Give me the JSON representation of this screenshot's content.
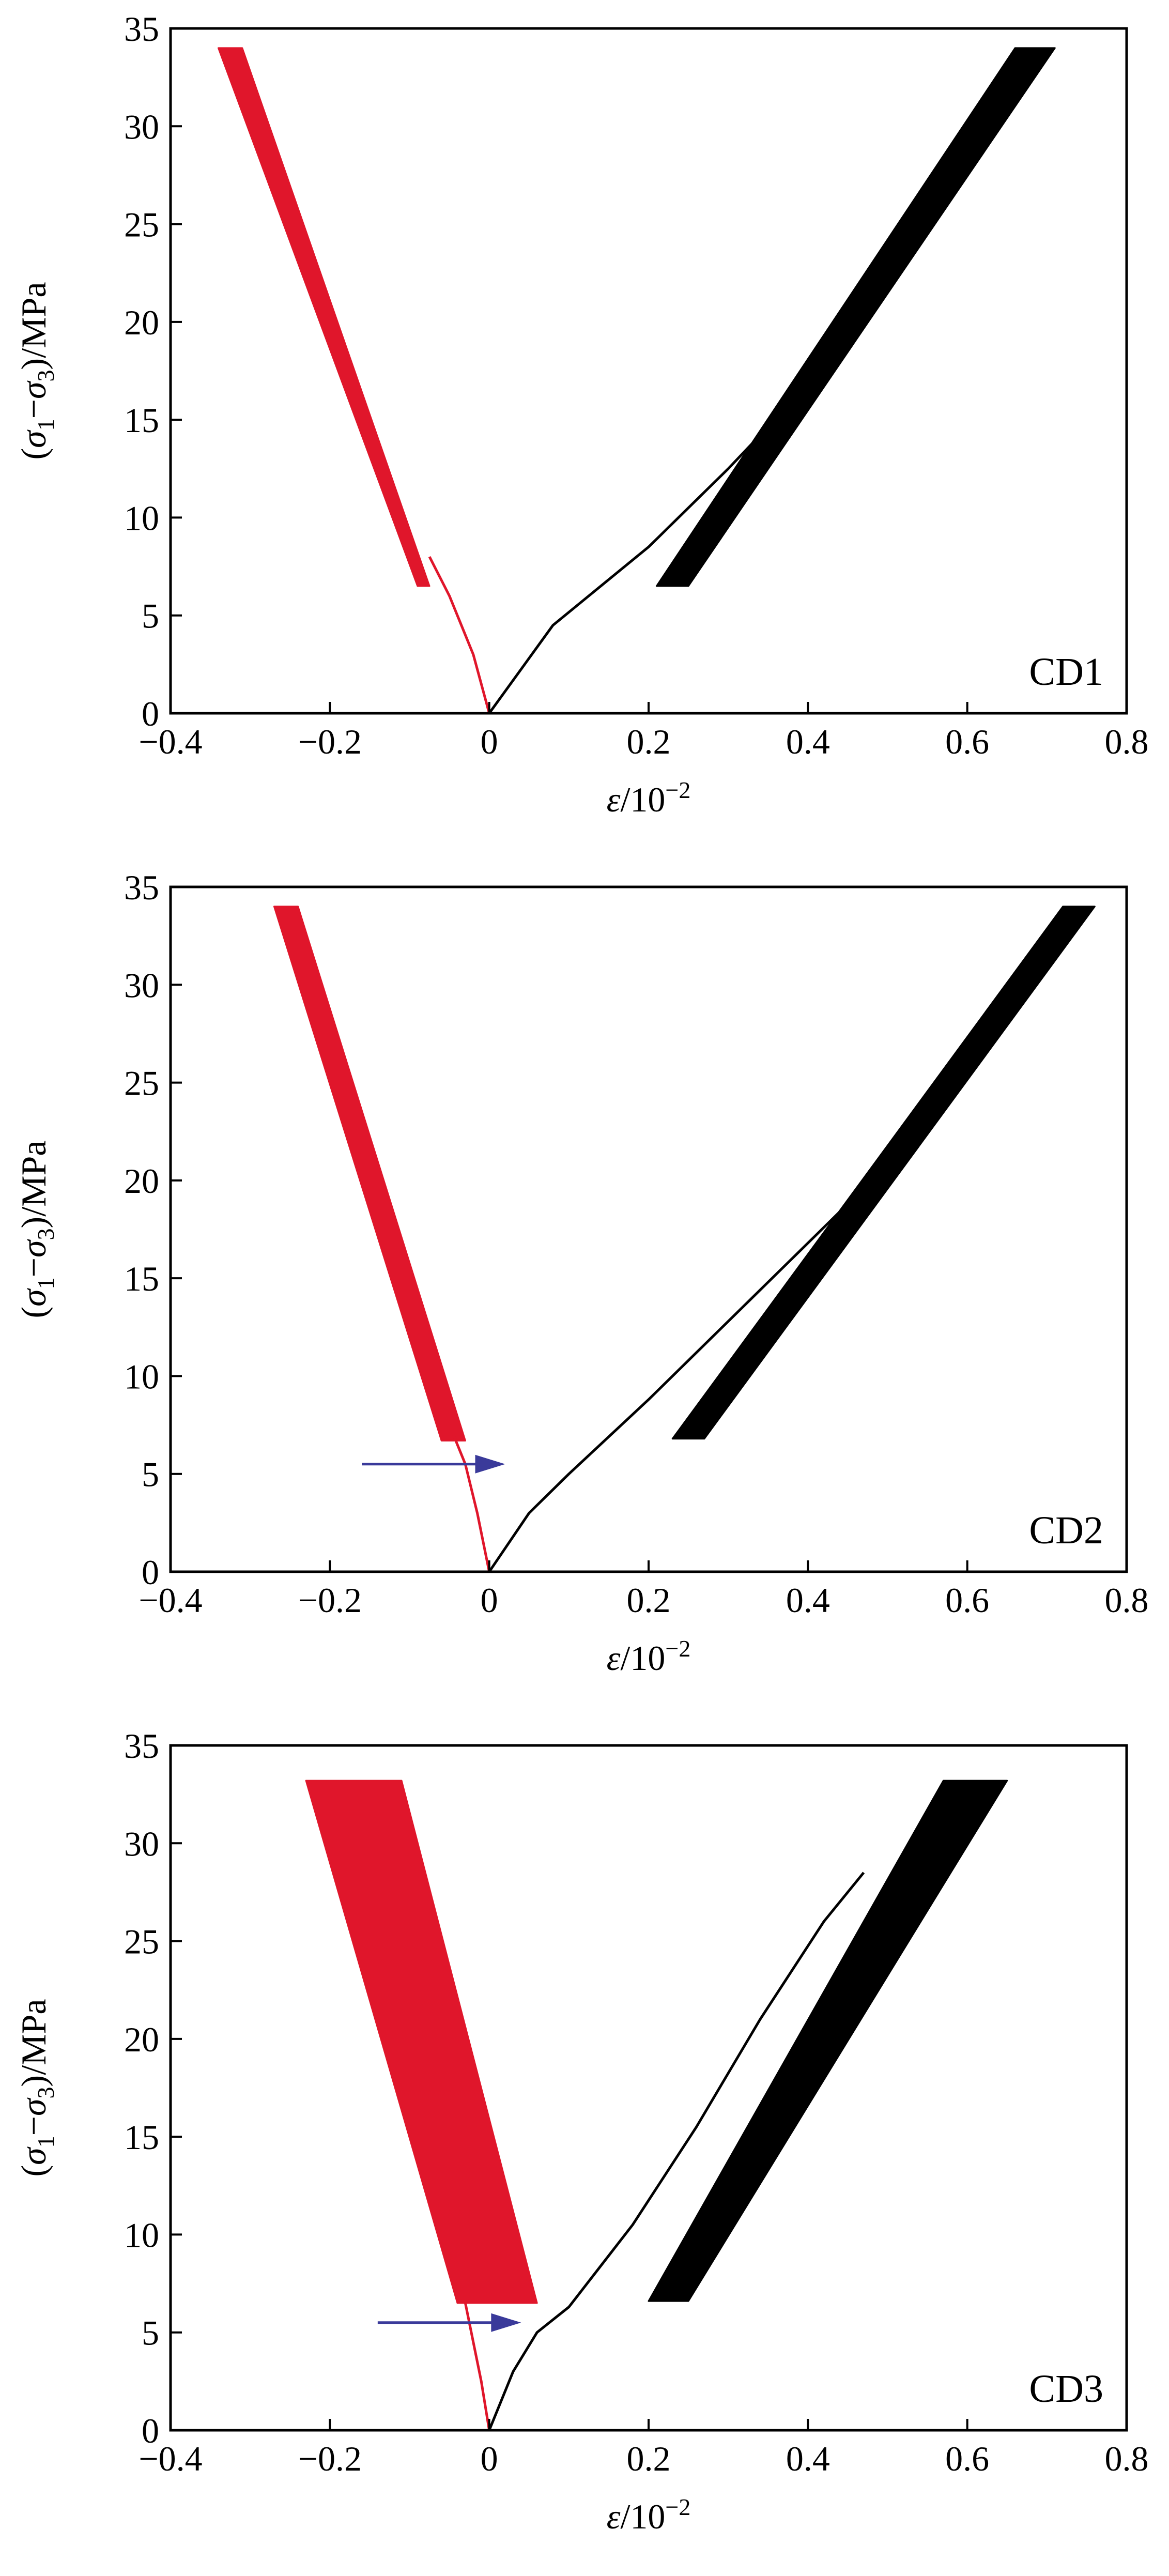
{
  "colors": {
    "lateral": "#e0162b",
    "axial": "#000000",
    "arrow": "#3a3a9a"
  },
  "axes": {
    "x_label_symbol": "ε",
    "x_label_rest": "/10",
    "x_label_exp": "−2",
    "y_label_parts": [
      "(",
      "σ",
      "1",
      "−",
      "σ",
      "3",
      ")/MPa"
    ],
    "x_ticks": [
      "−0.4",
      "−0.2",
      "0",
      "0.2",
      "0.4",
      "0.6",
      "0.8"
    ],
    "y_ticks": [
      "0",
      "5",
      "10",
      "15",
      "20",
      "25",
      "30",
      "35"
    ]
  },
  "chart_data": [
    {
      "type": "line",
      "panel_label": "CD1",
      "xlim": [
        -0.4,
        0.8
      ],
      "ylim": [
        0,
        35
      ],
      "grid": false,
      "series": [
        {
          "role": "lateral",
          "initial_loading": {
            "x": [
              0,
              -0.02,
              -0.05,
              -0.075
            ],
            "y": [
              0,
              3,
              6,
              8
            ]
          },
          "cycle_band": {
            "lower": {
              "y": 6.5,
              "x_left": -0.09,
              "x_right": -0.075
            },
            "upper": {
              "y": 34,
              "x_left": -0.34,
              "x_right": -0.31
            }
          }
        },
        {
          "role": "axial",
          "initial_loading": {
            "x": [
              0,
              0.08,
              0.2,
              0.3,
              0.37,
              0.42
            ],
            "y": [
              0,
              4.5,
              8.5,
              12.5,
              15.5,
              17.5
            ]
          },
          "cycle_band": {
            "lower": {
              "y": 6.5,
              "x_left": 0.21,
              "x_right": 0.25
            },
            "upper": {
              "y": 34,
              "x_left": 0.66,
              "x_right": 0.71
            }
          }
        }
      ]
    },
    {
      "type": "line",
      "panel_label": "CD2",
      "xlim": [
        -0.4,
        0.8
      ],
      "ylim": [
        0,
        35
      ],
      "grid": false,
      "arrow": {
        "x_from": -0.16,
        "x_to": 0.02,
        "y": 5.5
      },
      "series": [
        {
          "role": "lateral",
          "initial_loading": {
            "x": [
              0,
              -0.015,
              -0.03,
              -0.045
            ],
            "y": [
              0,
              3,
              5.5,
              7
            ]
          },
          "cycle_band": {
            "lower": {
              "y": 6.7,
              "x_left": -0.06,
              "x_right": -0.03
            },
            "upper": {
              "y": 34,
              "x_left": -0.27,
              "x_right": -0.24
            }
          }
        },
        {
          "role": "axial",
          "initial_loading": {
            "x": [
              0,
              0.05,
              0.1,
              0.2,
              0.3,
              0.4,
              0.48,
              0.55
            ],
            "y": [
              0,
              3,
              5,
              8.8,
              12.8,
              16.8,
              20,
              23.5
            ]
          },
          "cycle_band": {
            "lower": {
              "y": 6.8,
              "x_left": 0.23,
              "x_right": 0.27
            },
            "upper": {
              "y": 34,
              "x_left": 0.72,
              "x_right": 0.76
            }
          }
        }
      ]
    },
    {
      "type": "line",
      "panel_label": "CD3",
      "xlim": [
        -0.4,
        0.8
      ],
      "ylim": [
        0,
        35
      ],
      "grid": false,
      "arrow": {
        "x_from": -0.14,
        "x_to": 0.04,
        "y": 5.5
      },
      "series": [
        {
          "role": "lateral",
          "initial_loading": {
            "x": [
              0,
              -0.01,
              -0.02,
              -0.03
            ],
            "y": [
              0,
              2.5,
              4.5,
              6.5
            ]
          },
          "cycle_band": {
            "lower": {
              "y": 6.5,
              "x_left": -0.04,
              "x_right": 0.06
            },
            "upper": {
              "y": 33.2,
              "x_left": -0.23,
              "x_right": -0.11
            }
          }
        },
        {
          "role": "axial",
          "initial_loading": {
            "x": [
              0,
              0.03,
              0.06,
              0.1,
              0.18,
              0.26,
              0.34,
              0.42,
              0.47
            ],
            "y": [
              0,
              3,
              5,
              6.3,
              10.5,
              15.5,
              21,
              26,
              28.5
            ]
          },
          "cycle_band": {
            "lower": {
              "y": 6.6,
              "x_left": 0.2,
              "x_right": 0.25
            },
            "upper": {
              "y": 33.2,
              "x_left": 0.57,
              "x_right": 0.65
            }
          }
        }
      ]
    }
  ]
}
